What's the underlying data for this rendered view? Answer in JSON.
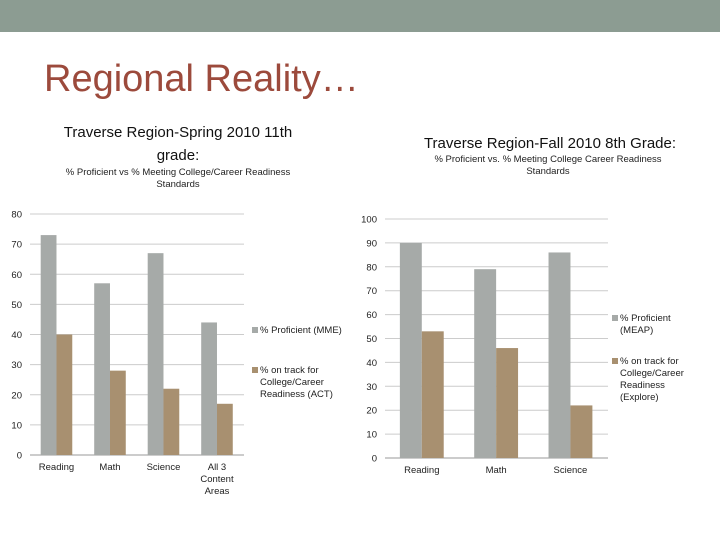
{
  "slide": {
    "title": "Regional Reality…",
    "colors": {
      "topbar": "#8c9c92",
      "title": "#9c4a3c",
      "series1": "#a6aaa8",
      "series2": "#a89070",
      "grid": "#cccccc"
    }
  },
  "chart_data": [
    {
      "type": "bar",
      "title": "Traverse Region-Spring 2010 11th grade:",
      "subtitle": "% Proficient vs % Meeting College/Career Readiness Standards",
      "categories": [
        "Reading",
        "Math",
        "Science",
        "All 3 Content Areas"
      ],
      "series": [
        {
          "name": "% Proficient (MME)",
          "values": [
            73,
            57,
            67,
            44
          ]
        },
        {
          "name": "% on track for College/Career Readiness (ACT)",
          "values": [
            40,
            28,
            22,
            17
          ]
        }
      ],
      "ylim": [
        0,
        80
      ],
      "yticks": [
        0,
        10,
        20,
        30,
        40,
        50,
        60,
        70,
        80
      ],
      "grid": true,
      "legend": "right"
    },
    {
      "type": "bar",
      "title": "Traverse Region-Fall 2010 8th Grade:",
      "subtitle": "% Proficient vs. % Meeting College Career Readiness Standards",
      "categories": [
        "Reading",
        "Math",
        "Science"
      ],
      "series": [
        {
          "name": "% Proficient (MEAP)",
          "values": [
            90,
            79,
            86
          ]
        },
        {
          "name": "% on track for College/Career Readiness (Explore)",
          "values": [
            53,
            46,
            22
          ]
        }
      ],
      "ylim": [
        0,
        100
      ],
      "yticks": [
        0,
        10,
        20,
        30,
        40,
        50,
        60,
        70,
        80,
        90,
        100
      ],
      "grid": true,
      "legend": "right"
    }
  ]
}
